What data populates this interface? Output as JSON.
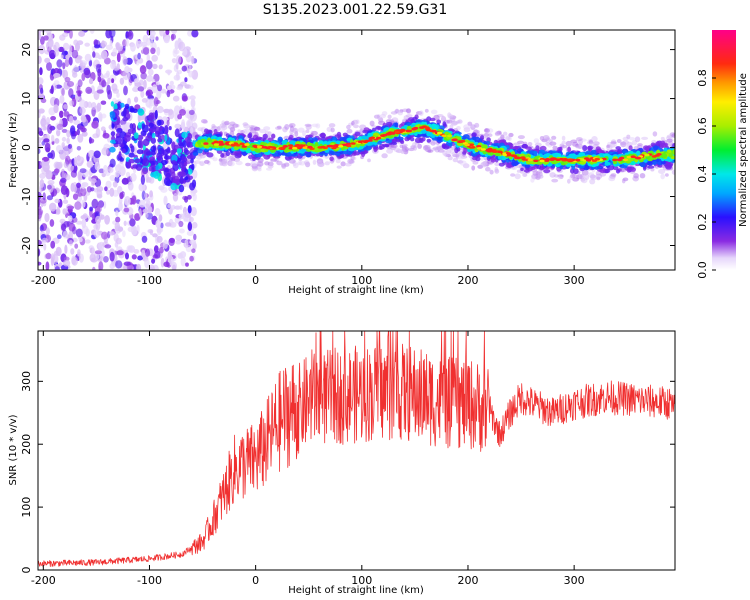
{
  "title": "S135.2023.001.22.59.G31",
  "chart_data": [
    {
      "type": "heatmap",
      "xlabel": "Height of straight line (km)",
      "ylabel": "Frequency (Hz)",
      "xlim": [
        -205,
        395
      ],
      "ylim": [
        -25,
        24
      ],
      "xticks": [
        -200,
        -100,
        0,
        100,
        200,
        300
      ],
      "yticks": [
        -20,
        -10,
        0,
        10,
        20
      ],
      "colorbar": {
        "label": "Normalized spectral amplitude",
        "range": [
          0,
          1
        ],
        "ticks": [
          "0.0",
          "0.2",
          "0.4",
          "0.6",
          "0.8"
        ],
        "colormap": "rainbow (white-purple-blue-cyan-green-yellow-orange-red-magenta)"
      },
      "ridge": {
        "description": "frequency of peak spectral amplitude vs height",
        "x": [
          -57,
          -50,
          -30,
          -10,
          0,
          20,
          40,
          60,
          80,
          100,
          120,
          140,
          160,
          180,
          200,
          220,
          240,
          260,
          280,
          300,
          320,
          340,
          360,
          380,
          395
        ],
        "y": [
          0,
          1,
          0.8,
          0.5,
          0,
          0,
          0.2,
          0,
          0.3,
          1,
          2.5,
          3.5,
          4,
          2.5,
          0.5,
          -0.5,
          -1.5,
          -2.5,
          -2.5,
          -2.5,
          -2.5,
          -2.5,
          -2,
          -1.5,
          -1.5
        ]
      },
      "noise_region": {
        "x": [
          -205,
          -57
        ],
        "y": [
          -25,
          24
        ]
      }
    },
    {
      "type": "line",
      "xlabel": "Height of straight line (km)",
      "ylabel": "SNR (10 * v/v)",
      "xlim": [
        -205,
        395
      ],
      "ylim": [
        0,
        380
      ],
      "xticks": [
        -200,
        -100,
        0,
        100,
        200,
        300
      ],
      "yticks": [
        0,
        100,
        200,
        300
      ],
      "color": "#f03030",
      "series": [
        {
          "x": [
            -205,
            -150,
            -100,
            -70,
            -50,
            -40,
            -30,
            -20,
            -10,
            0,
            10,
            20,
            30,
            40,
            50,
            70,
            100,
            130,
            160,
            180,
            200,
            220,
            230,
            240,
            250,
            260,
            280,
            300,
            330,
            360,
            390,
            395
          ],
          "values": [
            10,
            12,
            18,
            25,
            45,
            80,
            120,
            160,
            170,
            175,
            200,
            230,
            250,
            255,
            270,
            275,
            280,
            285,
            275,
            265,
            265,
            255,
            215,
            250,
            275,
            265,
            250,
            265,
            275,
            270,
            265,
            255
          ]
        }
      ]
    }
  ]
}
